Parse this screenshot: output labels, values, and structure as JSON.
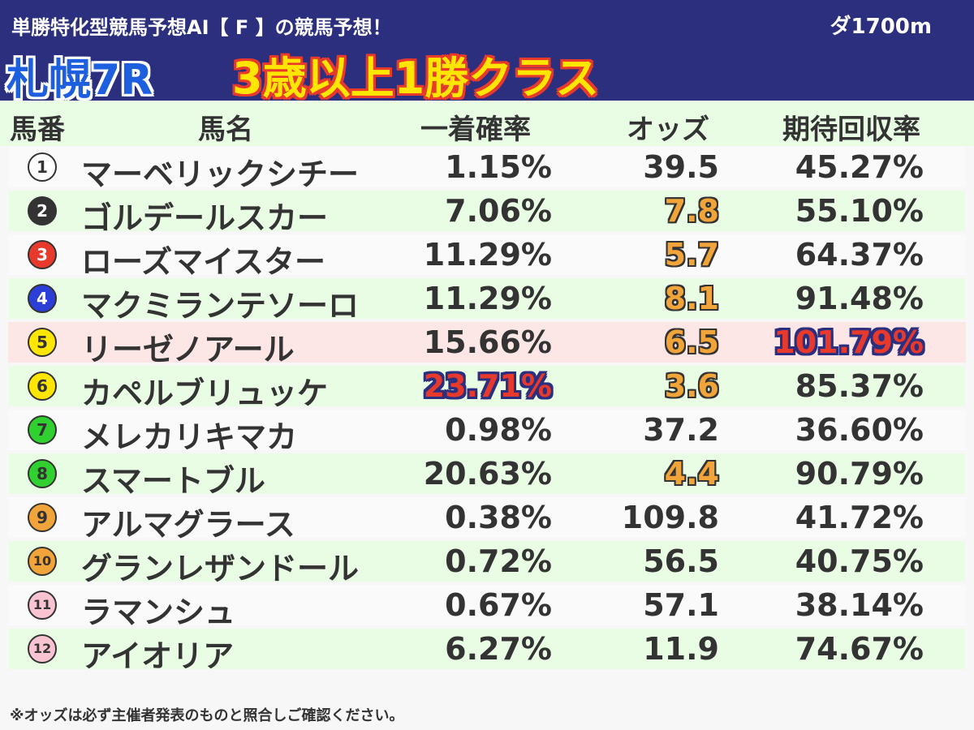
{
  "header": {
    "subtitle": "単勝特化型競馬予想AI【 F 】の競馬予想！",
    "distance": "ダ1700m",
    "race_name": "札幌7R",
    "race_class": "3歳以上1勝クラス"
  },
  "columns": {
    "number": "馬番",
    "name": "馬名",
    "win_prob": "一着確率",
    "odds": "オッズ",
    "expected_return": "期待回収率"
  },
  "rows": [
    {
      "num": "1",
      "name": "マーベリックシチー",
      "prob": "1.15%",
      "odds": "39.5",
      "ret": "45.27%"
    },
    {
      "num": "2",
      "name": "ゴルデールスカー",
      "prob": "7.06%",
      "odds": "7.8",
      "ret": "55.10%"
    },
    {
      "num": "3",
      "name": "ローズマイスター",
      "prob": "11.29%",
      "odds": "5.7",
      "ret": "64.37%"
    },
    {
      "num": "4",
      "name": "マクミランテソーロ",
      "prob": "11.29%",
      "odds": "8.1",
      "ret": "91.48%"
    },
    {
      "num": "5",
      "name": "リーゼノアール",
      "prob": "15.66%",
      "odds": "6.5",
      "ret": "101.79%"
    },
    {
      "num": "6",
      "name": "カペルブリュッケ",
      "prob": "23.71%",
      "odds": "3.6",
      "ret": "85.37%"
    },
    {
      "num": "7",
      "name": "メレカリキマカ",
      "prob": "0.98%",
      "odds": "37.2",
      "ret": "36.60%"
    },
    {
      "num": "8",
      "name": "スマートブル",
      "prob": "20.63%",
      "odds": "4.4",
      "ret": "90.79%"
    },
    {
      "num": "9",
      "name": "アルマグラース",
      "prob": "0.38%",
      "odds": "109.8",
      "ret": "41.72%"
    },
    {
      "num": "10",
      "name": "グランレザンドール",
      "prob": "0.72%",
      "odds": "56.5",
      "ret": "40.75%"
    },
    {
      "num": "11",
      "name": "ラマンシュ",
      "prob": "0.67%",
      "odds": "57.1",
      "ret": "38.14%"
    },
    {
      "num": "12",
      "name": "アイオリア",
      "prob": "6.27%",
      "odds": "11.9",
      "ret": "74.67%"
    }
  ],
  "badge_colors": {
    "1": {
      "bg": "#ffffff",
      "fg": "#333333"
    },
    "2": {
      "bg": "#333333",
      "fg": "#ffffff"
    },
    "3": {
      "bg": "#e83a2c",
      "fg": "#ffffff"
    },
    "4": {
      "bg": "#2b3fd6",
      "fg": "#ffffff"
    },
    "5": {
      "bg": "#ffe600",
      "fg": "#333333"
    },
    "6": {
      "bg": "#ffe600",
      "fg": "#333333"
    },
    "7": {
      "bg": "#2fd02f",
      "fg": "#333333"
    },
    "8": {
      "bg": "#2fd02f",
      "fg": "#333333"
    },
    "9": {
      "bg": "#f0a43a",
      "fg": "#333333"
    },
    "10": {
      "bg": "#f0a43a",
      "fg": "#333333"
    },
    "11": {
      "bg": "#f9c3d1",
      "fg": "#333333"
    },
    "12": {
      "bg": "#f9c3d1",
      "fg": "#333333"
    }
  },
  "highlights": {
    "hot_odds_rows": [
      1,
      2,
      3,
      4,
      5,
      7
    ],
    "top_prob_row": 5,
    "top_return_row": 4,
    "highlight_row": 4
  },
  "footnote": "※オッズは必ず主催者発表のものと照合しご確認ください。"
}
